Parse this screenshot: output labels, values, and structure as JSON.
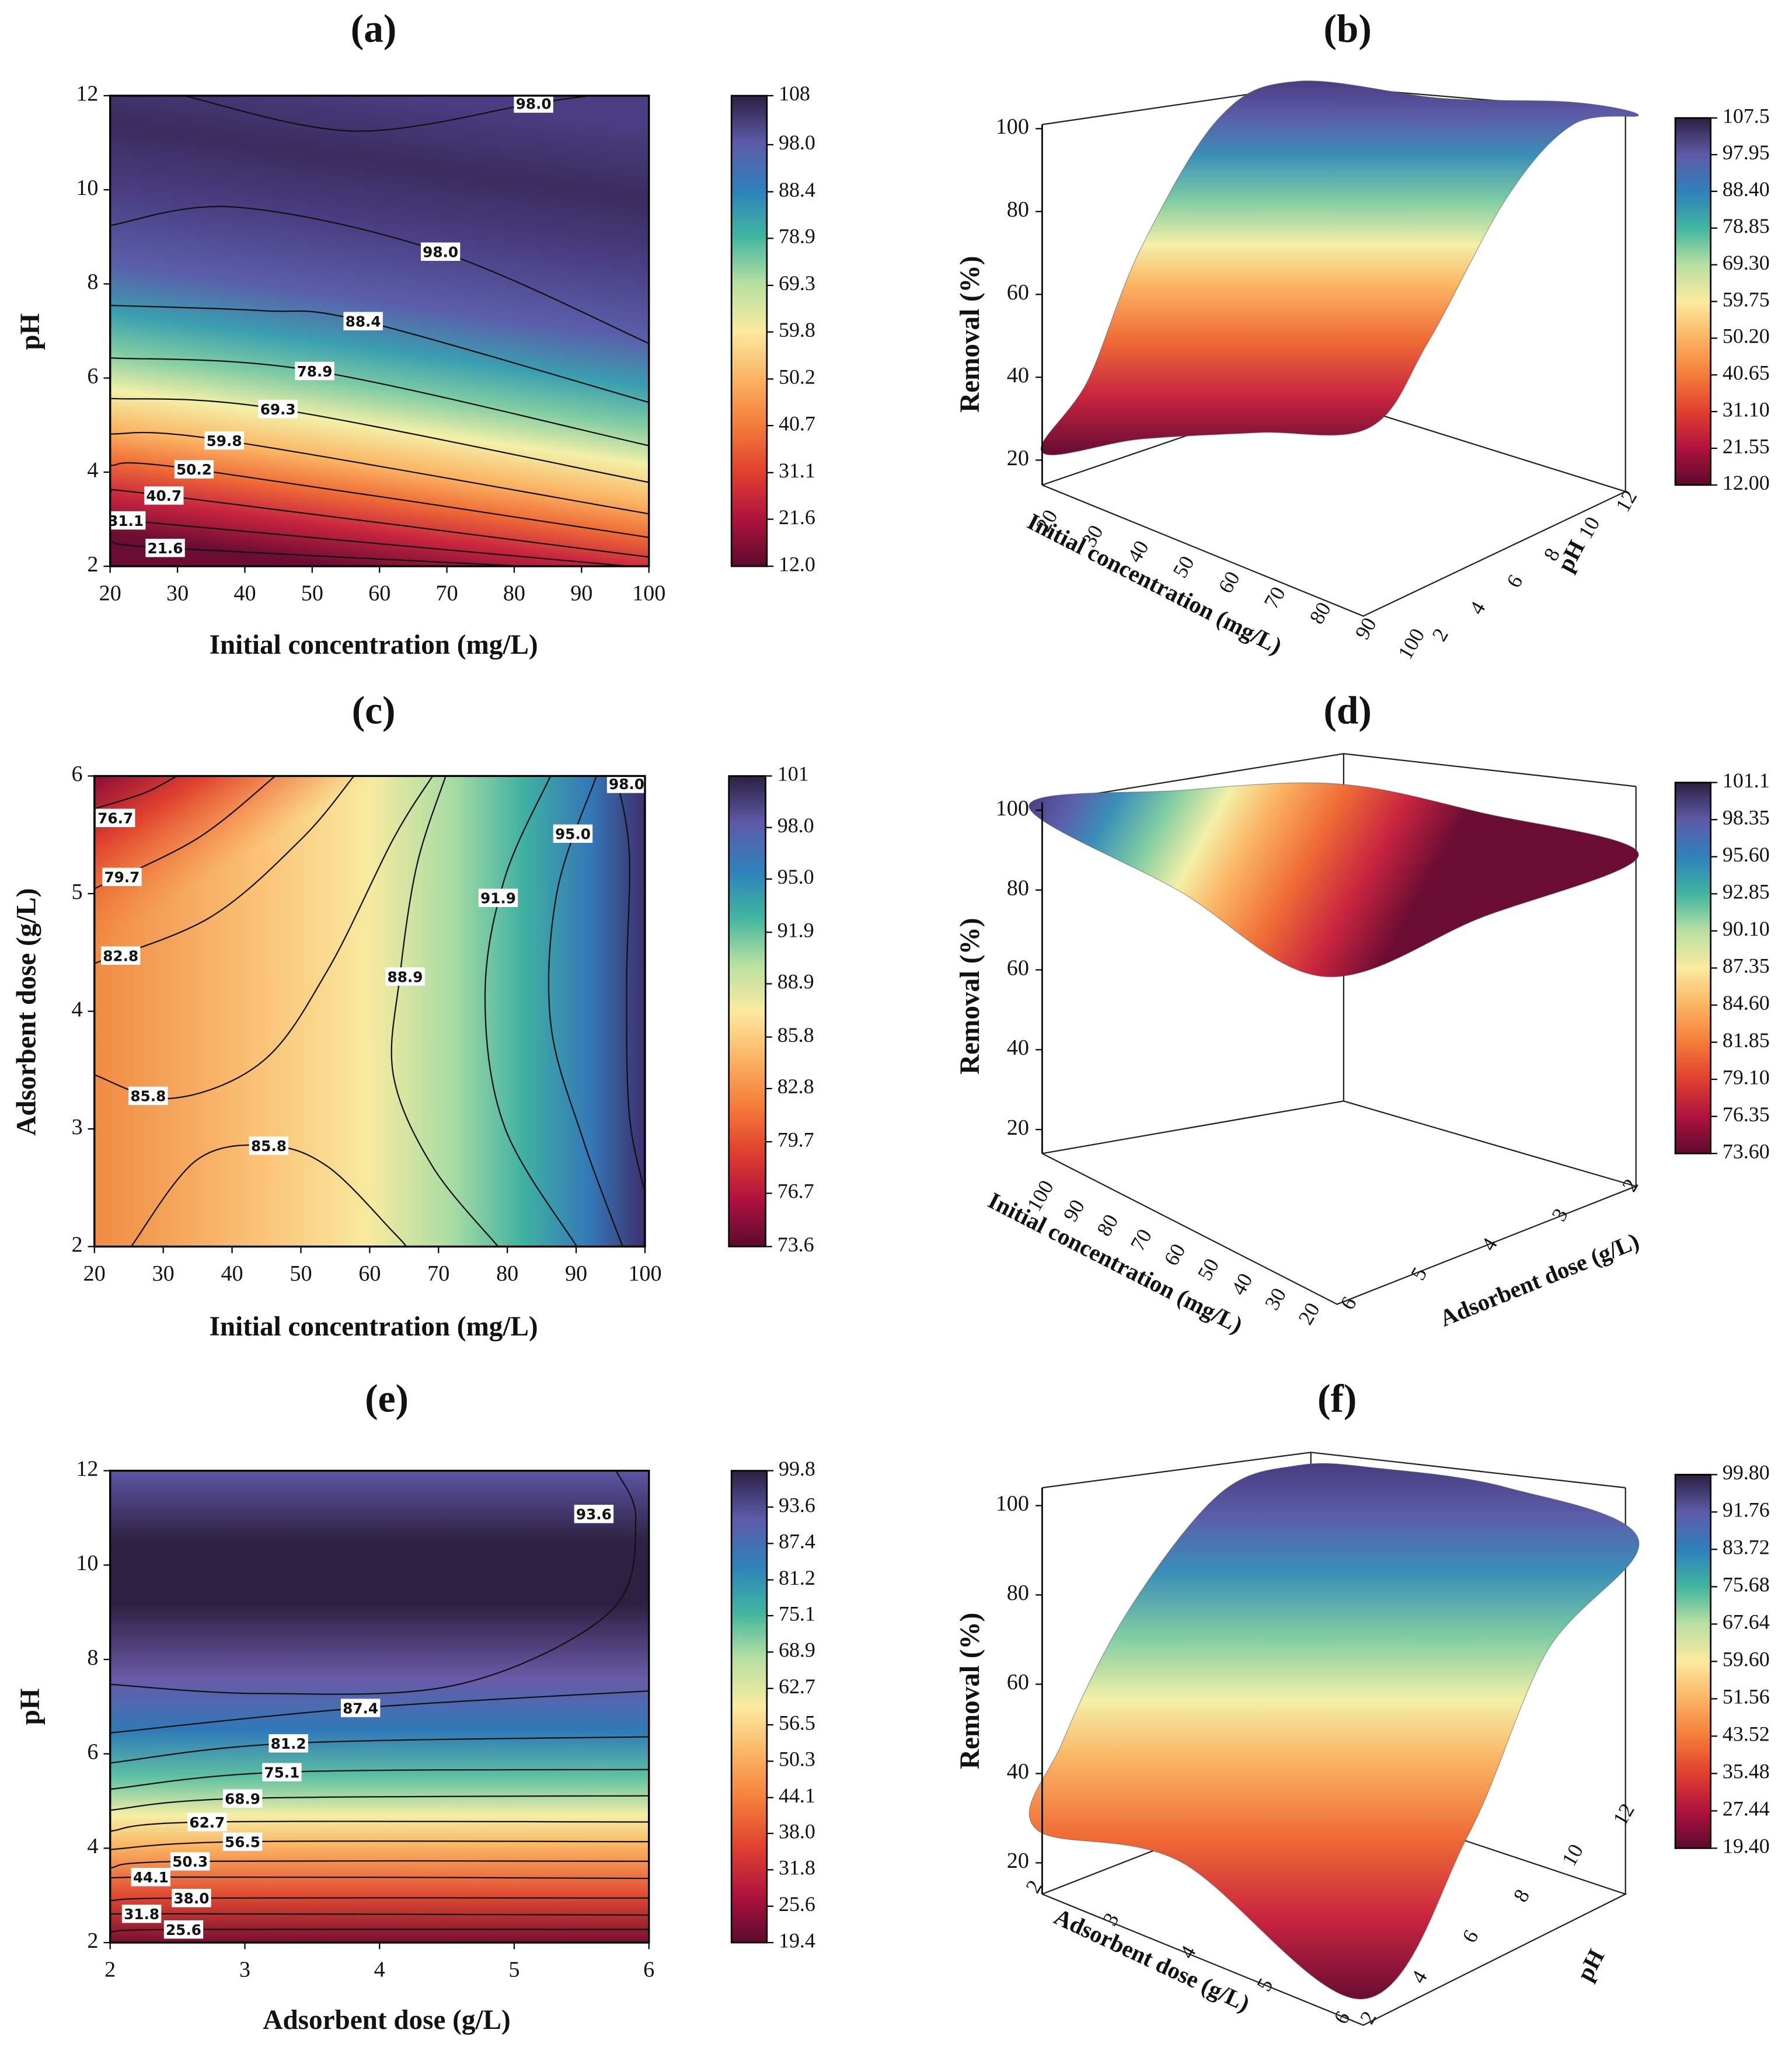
{
  "colormap": [
    "#5c0a2e",
    "#b0123f",
    "#e0402f",
    "#f57c3a",
    "#fbb464",
    "#fbeaa0",
    "#b8e0a2",
    "#40b5a0",
    "#2f80bc",
    "#5e5aa8",
    "#2c1f40"
  ],
  "chart_data": [
    {
      "type": "contour",
      "title": "(a)",
      "x_label": "Initial concentration (mg/L)",
      "y_label": "pH",
      "xlim": [
        20,
        100
      ],
      "xticks": [
        20,
        30,
        40,
        50,
        60,
        70,
        80,
        90,
        100
      ],
      "ylim": [
        2,
        12
      ],
      "yticks": [
        2,
        4,
        6,
        8,
        10,
        12
      ],
      "colorbar": {
        "lim": [
          12,
          108
        ],
        "ticks": [
          {
            "value": 12,
            "label": "12.0"
          },
          21.6,
          31.1,
          40.7,
          50.2,
          59.8,
          69.3,
          78.9,
          88.4,
          {
            "value": 98,
            "label": "98.0"
          },
          108
        ]
      },
      "contour_labels": [
        {
          "value": 98,
          "label": "98.0"
        },
        {
          "value": 98,
          "label": "98.0"
        },
        88.4,
        78.9,
        69.3,
        59.8,
        50.2,
        40.7,
        31.1,
        21.6
      ]
    },
    {
      "type": "surface3d",
      "title": "(b)",
      "x_label": "Initial concentration (mg/L)",
      "y_label": "pH",
      "z_label": "Removal (%)",
      "xlim": [
        20,
        100
      ],
      "xticks": [
        20,
        30,
        40,
        50,
        60,
        70,
        80,
        90,
        100
      ],
      "ylim": [
        2,
        12
      ],
      "yticks": [
        2,
        4,
        6,
        8,
        10,
        12
      ],
      "zlim": [
        14,
        101
      ],
      "zticks": [
        20,
        40,
        60,
        80,
        100
      ],
      "colorbar": {
        "lim": [
          12,
          107.5
        ],
        "ticks": [
          {
            "value": 12,
            "label": "12.00"
          },
          21.55,
          {
            "value": 31.1,
            "label": "31.10"
          },
          40.65,
          {
            "value": 50.2,
            "label": "50.20"
          },
          59.75,
          {
            "value": 69.3,
            "label": "69.30"
          },
          78.85,
          {
            "value": 88.4,
            "label": "88.40"
          },
          97.95,
          107.5
        ]
      }
    },
    {
      "type": "contour",
      "title": "(c)",
      "x_label": "Initial concentration (mg/L)",
      "y_label": "Adsorbent dose (g/L)",
      "xlim": [
        20,
        100
      ],
      "xticks": [
        20,
        30,
        40,
        50,
        60,
        70,
        80,
        90,
        100
      ],
      "ylim": [
        2,
        6
      ],
      "yticks": [
        2,
        3,
        4,
        5,
        6
      ],
      "colorbar": {
        "lim": [
          73.6,
          101
        ],
        "ticks": [
          73.6,
          76.7,
          79.7,
          82.8,
          85.8,
          88.9,
          91.9,
          {
            "value": 95,
            "label": "95.0"
          },
          {
            "value": 98,
            "label": "98.0"
          },
          101
        ]
      },
      "contour_labels": [
        76.7,
        79.7,
        82.8,
        85.8,
        88.9,
        91.9,
        {
          "value": 95,
          "label": "95.0"
        },
        {
          "value": 98,
          "label": "98.0"
        },
        85.8
      ]
    },
    {
      "type": "surface3d",
      "title": "(d)",
      "x_label": "Initial concentration (mg/L)",
      "y_label": "Adsorbent dose (g/L)",
      "z_label": "Removal (%)",
      "xlim": [
        100,
        20
      ],
      "xticks": [
        20,
        30,
        40,
        50,
        60,
        70,
        80,
        90,
        100
      ],
      "ylim": [
        6,
        2
      ],
      "yticks": [
        2,
        3,
        4,
        5,
        6
      ],
      "zlim": [
        14,
        102
      ],
      "zticks": [
        20,
        40,
        60,
        80,
        100
      ],
      "colorbar": {
        "lim": [
          73.6,
          101.1
        ],
        "ticks": [
          {
            "value": 73.6,
            "label": "73.60"
          },
          76.35,
          {
            "value": 79.1,
            "label": "79.10"
          },
          81.85,
          {
            "value": 84.6,
            "label": "84.60"
          },
          87.35,
          {
            "value": 90.1,
            "label": "90.10"
          },
          92.85,
          {
            "value": 95.6,
            "label": "95.60"
          },
          98.35,
          101.1
        ]
      }
    },
    {
      "type": "contour",
      "title": "(e)",
      "x_label": "Adsorbent dose (g/L)",
      "y_label": "pH",
      "xlim": [
        2,
        6
      ],
      "xticks": [
        2,
        3,
        4,
        5,
        6
      ],
      "ylim": [
        2,
        12
      ],
      "yticks": [
        2,
        4,
        6,
        8,
        10,
        12
      ],
      "colorbar": {
        "lim": [
          19.4,
          99.8
        ],
        "ticks": [
          19.4,
          25.6,
          31.8,
          {
            "value": 38,
            "label": "38.0"
          },
          44.1,
          50.3,
          56.5,
          62.7,
          68.9,
          75.1,
          81.2,
          87.4,
          93.6,
          99.8
        ]
      },
      "contour_labels": [
        93.6,
        87.4,
        81.2,
        75.1,
        68.9,
        62.7,
        56.5,
        50.3,
        44.1,
        {
          "value": 38,
          "label": "38.0"
        },
        31.8,
        25.6
      ]
    },
    {
      "type": "surface3d",
      "title": "(f)",
      "x_label": "Adsorbent dose (g/L)",
      "y_label": "pH",
      "z_label": "Removal (%)",
      "xlim": [
        2,
        6
      ],
      "xticks": [
        2,
        3,
        4,
        5,
        6
      ],
      "ylim": [
        2,
        12
      ],
      "yticks": [
        2,
        4,
        6,
        8,
        10,
        12
      ],
      "zlim": [
        13,
        104
      ],
      "zticks": [
        20,
        40,
        60,
        80,
        100
      ],
      "colorbar": {
        "lim": [
          19.4,
          99.8
        ],
        "ticks": [
          {
            "value": 19.4,
            "label": "19.40"
          },
          27.44,
          35.48,
          43.52,
          51.56,
          {
            "value": 59.6,
            "label": "59.60"
          },
          67.64,
          75.68,
          83.72,
          91.76,
          {
            "value": 99.8,
            "label": "99.80"
          }
        ]
      }
    }
  ]
}
